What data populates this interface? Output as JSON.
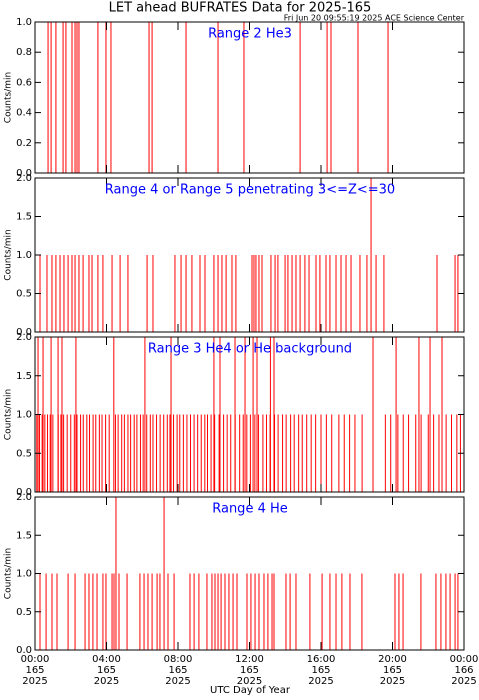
{
  "chart_data": [
    {
      "type": "bar",
      "title": "LET ahead BUFRATES Data for 2025-165",
      "subtitle": "Fri Jun 20 09:55:19 2025 ACE Science Center",
      "panel_title": "Range 2 He3",
      "ylabel": "Counts/min",
      "color": "#ff0000",
      "xlim": [
        0,
        24
      ],
      "xticks": [
        0,
        4,
        8,
        12,
        16,
        20,
        24
      ],
      "ylim": [
        0,
        1
      ],
      "yticks": [
        {
          "value": 0,
          "label": "0.0"
        },
        0.2,
        0.4,
        0.6,
        0.8,
        {
          "value": 1,
          "label": "1.0"
        }
      ],
      "x": [
        0.73,
        0.9,
        1.17,
        1.57,
        1.73,
        2.07,
        2.24,
        2.35,
        2.46,
        3.52,
        3.97,
        4.25,
        6.38,
        6.55,
        8.45,
        10.24,
        11.69,
        14.83,
        16.34,
        16.56,
        18.07,
        19.75
      ],
      "values": [
        1,
        1,
        1,
        1,
        1,
        1,
        1,
        1,
        1,
        1,
        1,
        1,
        1,
        1,
        1,
        1,
        1,
        1,
        1,
        1,
        1,
        1
      ]
    },
    {
      "type": "bar",
      "panel_title": "Range 4 or Range 5 penetrating 3<=Z<=30",
      "ylabel": "Counts/min",
      "color": "#ff0000",
      "xlim": [
        0,
        24
      ],
      "xticks": [
        0,
        4,
        8,
        12,
        16,
        20,
        24
      ],
      "ylim": [
        0,
        2
      ],
      "yticks": [
        {
          "value": 0,
          "label": "0.0"
        },
        0.5,
        {
          "value": 1,
          "label": "1.0"
        },
        1.5,
        {
          "value": 2,
          "label": "2.0"
        }
      ],
      "x": [
        0.28,
        0.67,
        0.95,
        1.17,
        1.4,
        1.62,
        1.85,
        2.07,
        2.24,
        2.46,
        2.69,
        3.02,
        3.19,
        3.52,
        3.8,
        4.31,
        4.76,
        5.2,
        6.27,
        6.6,
        7.83,
        8.17,
        8.45,
        8.78,
        9.23,
        9.51,
        10.01,
        10.24,
        10.46,
        10.69,
        11.02,
        11.24,
        12.14,
        12.25,
        12.36,
        12.53,
        12.7,
        13.2,
        13.43,
        13.59,
        13.99,
        14.15,
        14.38,
        14.6,
        14.83,
        15.1,
        15.33,
        15.72,
        15.94,
        16.28,
        16.5,
        16.84,
        17.12,
        17.4,
        17.68,
        18.18,
        18.57,
        18.8,
        19.08,
        19.52,
        22.49,
        23.5,
        23.66
      ],
      "values": [
        1,
        1,
        1,
        1,
        1,
        1,
        1,
        1,
        1,
        1,
        1,
        1,
        1,
        1,
        1,
        1,
        1,
        1,
        1,
        1,
        1,
        1,
        1,
        1,
        1,
        1,
        1,
        1,
        1,
        1,
        1,
        1,
        1,
        1,
        1,
        1,
        1,
        1,
        1,
        1,
        1,
        1,
        1,
        1,
        1,
        1,
        1,
        1,
        1,
        1,
        1,
        1,
        1,
        1,
        1,
        1,
        1,
        2,
        1,
        1,
        1,
        1,
        1
      ]
    },
    {
      "type": "bar",
      "panel_title": "Range 3 He4 or He background",
      "ylabel": "Counts/min",
      "color": "#ff0000",
      "xlim": [
        0,
        24
      ],
      "xticks": [
        0,
        4,
        8,
        12,
        16,
        20,
        24
      ],
      "ylim": [
        0,
        2
      ],
      "yticks": [
        {
          "value": 0,
          "label": "0.0"
        },
        0.5,
        {
          "value": 1,
          "label": "1.0"
        },
        1.5,
        {
          "value": 2,
          "label": "2.0"
        }
      ],
      "x": [
        0.1,
        0.25,
        0.4,
        0.55,
        0.7,
        0.85,
        1.0,
        1.3,
        1.45,
        1.6,
        1.8,
        2.0,
        2.2,
        2.35,
        2.55,
        2.7,
        2.9,
        3.05,
        3.25,
        3.4,
        3.6,
        3.75,
        3.95,
        4.15,
        4.5,
        4.65,
        4.85,
        5.0,
        5.2,
        5.35,
        5.55,
        5.7,
        5.9,
        6.05,
        6.25,
        6.45,
        6.6,
        6.8,
        7.0,
        7.2,
        7.4,
        7.55,
        7.75,
        7.95,
        8.1,
        8.3,
        8.5,
        8.7,
        8.9,
        9.1,
        9.3,
        9.5,
        9.65,
        9.85,
        10.05,
        10.3,
        10.55,
        10.75,
        10.95,
        11.2,
        11.45,
        11.65,
        11.85,
        12.05,
        12.3,
        12.5,
        12.75,
        12.95,
        13.15,
        13.4,
        13.6,
        13.85,
        14.05,
        14.3,
        14.5,
        14.75,
        14.95,
        15.2,
        15.45,
        15.7,
        16.0,
        16.3,
        16.6,
        17.0,
        17.3,
        17.6,
        17.9,
        18.3,
        19.6,
        19.9,
        20.3,
        20.6,
        20.9,
        21.3,
        21.6,
        22.0,
        22.3,
        22.6,
        23.0,
        23.3,
        23.6,
        23.8,
        0.17,
        0.45,
        0.9,
        1.29,
        1.51,
        2.29,
        4.41,
        6.15,
        7.61,
        10.01,
        10.35,
        11.19,
        11.75,
        12.2,
        12.42,
        13.17,
        13.37,
        18.91,
        20.2,
        21.48,
        22.1,
        22.77
      ],
      "values": [
        1,
        1,
        1,
        1,
        1,
        1,
        1,
        1,
        1,
        1,
        1,
        1,
        1,
        1,
        1,
        1,
        1,
        1,
        1,
        1,
        1,
        1,
        1,
        1,
        1,
        1,
        1,
        1,
        1,
        1,
        1,
        1,
        1,
        1,
        1,
        1,
        1,
        1,
        1,
        1,
        1,
        1,
        1,
        1,
        1,
        1,
        1,
        1,
        1,
        1,
        1,
        1,
        1,
        1,
        1,
        1,
        1,
        1,
        1,
        1,
        1,
        1,
        1,
        1,
        1,
        1,
        1,
        1,
        1,
        1,
        1,
        1,
        1,
        1,
        1,
        1,
        1,
        1,
        1,
        1,
        1,
        1,
        1,
        1,
        1,
        1,
        1,
        1,
        1,
        1,
        1,
        1,
        1,
        1,
        1,
        1,
        1,
        1,
        1,
        1,
        1,
        1,
        2,
        2,
        2,
        2,
        2,
        2,
        2,
        2,
        2,
        2,
        2,
        2,
        2,
        2,
        2,
        2,
        2,
        2,
        2,
        2,
        2,
        2
      ]
    },
    {
      "type": "bar",
      "panel_title": "Range 4 He",
      "ylabel": "Counts/min",
      "xlabel": "UTC Day of Year",
      "color": "#ff0000",
      "xlim": [
        0,
        24
      ],
      "xticks": [
        {
          "value": 0,
          "label": "00:00"
        },
        {
          "value": 4,
          "label": "04:00"
        },
        {
          "value": 8,
          "label": "08:00"
        },
        {
          "value": 12,
          "label": "12:00"
        },
        {
          "value": 16,
          "label": "16:00"
        },
        {
          "value": 20,
          "label": "20:00"
        },
        {
          "value": 24,
          "label": "00:00"
        }
      ],
      "xtick_days": [
        "165",
        "165",
        "165",
        "165",
        "165",
        "165",
        "166"
      ],
      "xtick_years": [
        "2025",
        "2025",
        "2025",
        "2025",
        "2025",
        "2025",
        "2025"
      ],
      "ylim": [
        0,
        2
      ],
      "yticks": [
        {
          "value": 0,
          "label": "0.0"
        },
        0.5,
        {
          "value": 1,
          "label": "1.0"
        },
        1.5,
        {
          "value": 2,
          "label": "2.0"
        }
      ],
      "x": [
        0.28,
        0.62,
        0.95,
        1.23,
        1.85,
        2.24,
        2.8,
        3.02,
        3.24,
        3.47,
        3.8,
        3.97,
        4.31,
        4.42,
        4.7,
        5.15,
        5.87,
        6.1,
        6.32,
        6.55,
        6.83,
        6.99,
        7.44,
        7.78,
        8.67,
        8.9,
        9.17,
        9.62,
        9.9,
        10.07,
        10.24,
        10.41,
        10.63,
        10.85,
        11.08,
        11.3,
        11.86,
        12.08,
        12.31,
        12.53,
        12.81,
        13.03,
        13.26,
        13.37,
        14.04,
        14.27,
        14.6,
        15.38,
        16.06,
        16.5,
        16.84,
        17.17,
        17.62,
        18.29,
        20.14,
        20.36,
        20.59,
        21.59,
        22.43,
        22.71,
        22.99,
        23.22,
        23.5,
        23.66,
        4.53,
        7.22
      ],
      "values": [
        1,
        1,
        1,
        1,
        1,
        1,
        1,
        1,
        1,
        1,
        1,
        1,
        1,
        1,
        1,
        1,
        1,
        1,
        1,
        1,
        1,
        1,
        1,
        1,
        1,
        1,
        1,
        1,
        1,
        1,
        1,
        1,
        1,
        1,
        1,
        1,
        1,
        1,
        1,
        1,
        1,
        1,
        1,
        1,
        1,
        1,
        1,
        1,
        1,
        1,
        1,
        1,
        1,
        1,
        1,
        1,
        1,
        1,
        1,
        1,
        1,
        1,
        1,
        1,
        2,
        2
      ]
    }
  ]
}
